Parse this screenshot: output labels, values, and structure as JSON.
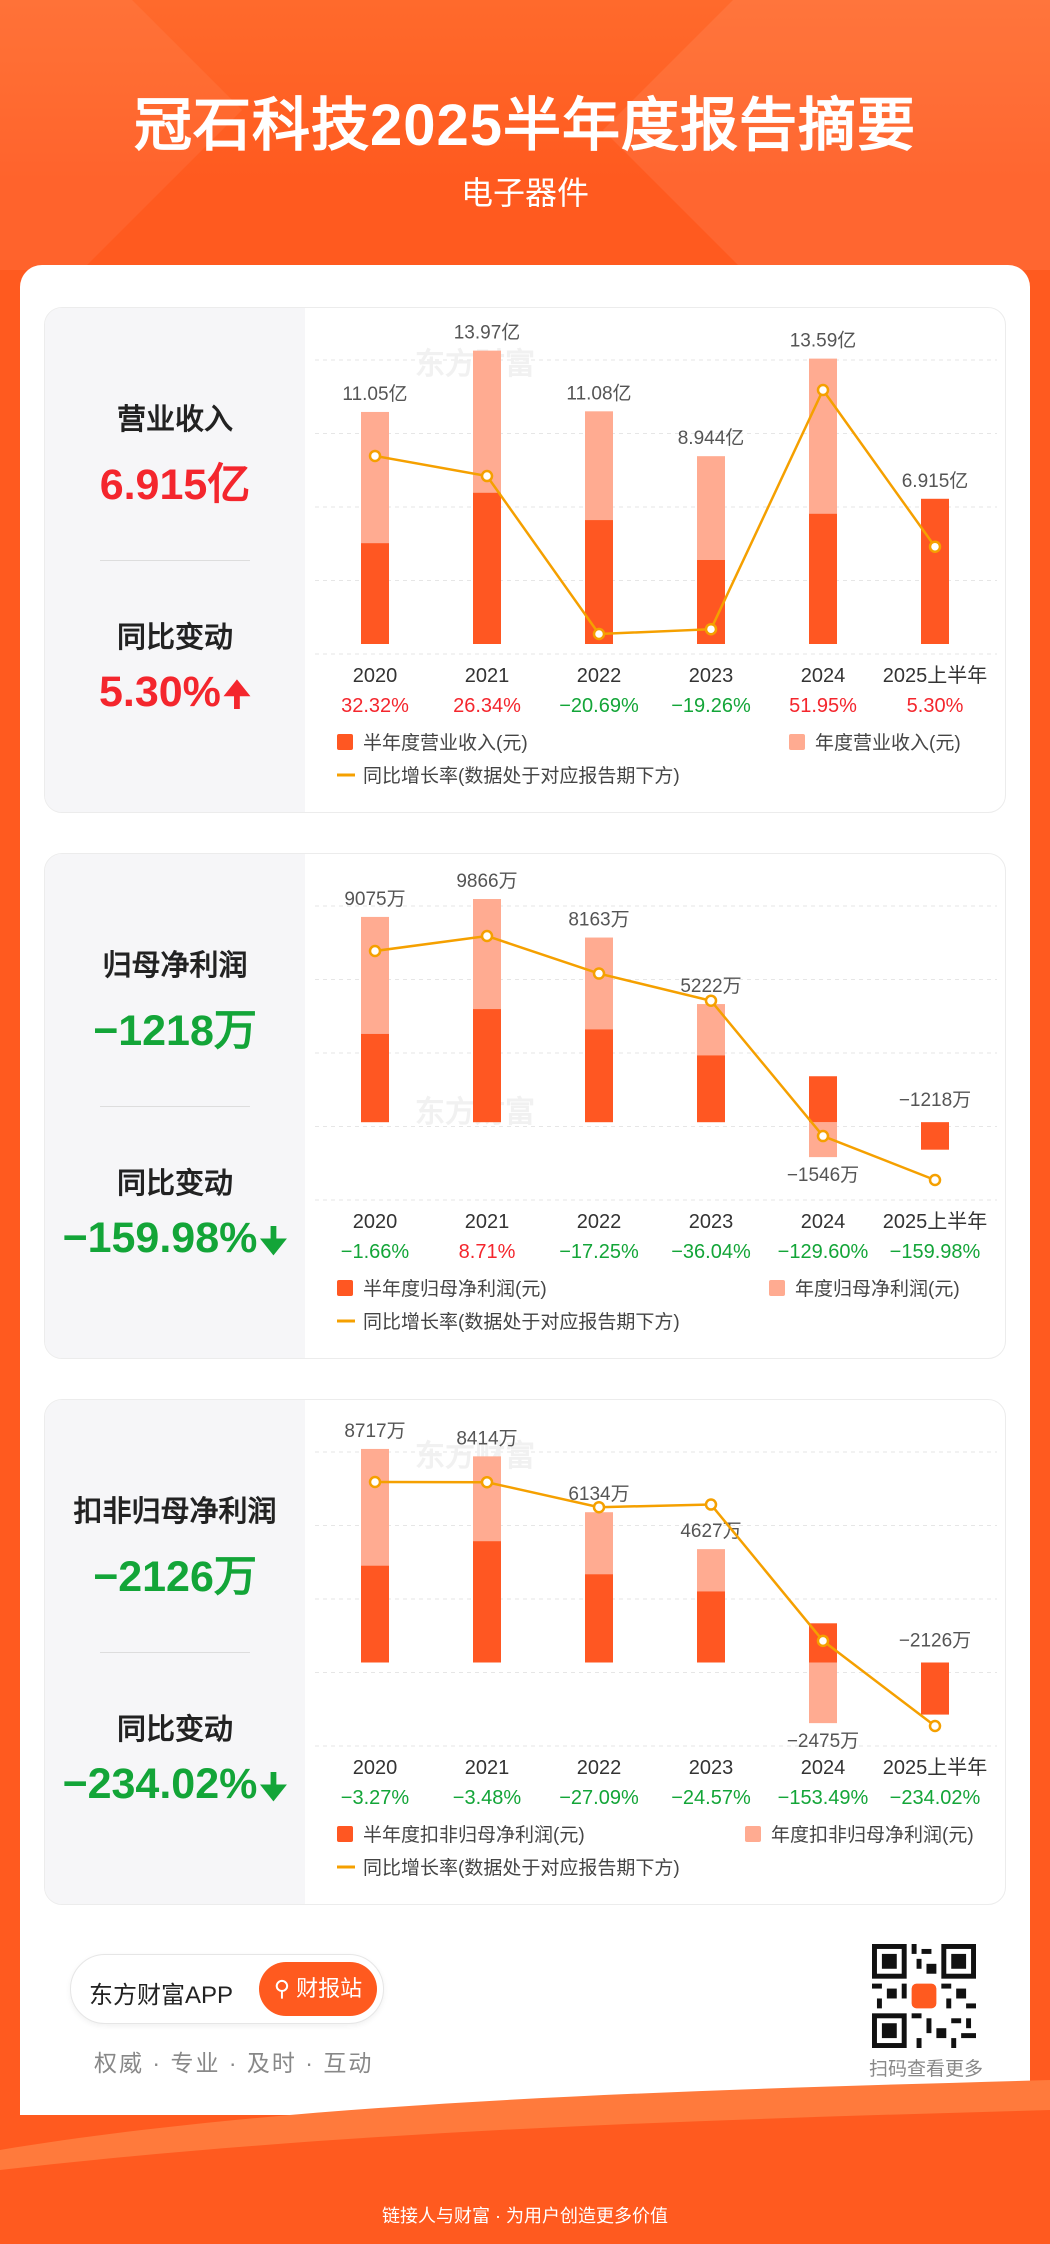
{
  "header": {
    "title": "冠石科技2025半年度报告摘要",
    "subtitle": "电子器件"
  },
  "colors": {
    "half_year": "#ff5722",
    "annual": "#ffab91",
    "growth_line": "#f5a000",
    "positive": "#f4262d",
    "negative": "#13a538"
  },
  "watermark": "东方财富",
  "categories": [
    "2020",
    "2021",
    "2022",
    "2023",
    "2024",
    "2025上半年"
  ],
  "sections": [
    {
      "metric_label": "营业收入",
      "metric_value": "6.915亿",
      "metric_sign": "positive",
      "change_label": "同比变动",
      "change_value": "5.30%",
      "change_arrow": "up",
      "legend": {
        "half": "半年度营业收入(元)",
        "annual": "年度营业收入(元)",
        "line": "同比增长率(数据处于对应报告期下方)"
      },
      "growth_labels": [
        "32.32%",
        "26.34%",
        "−20.69%",
        "−19.26%",
        "51.95%",
        "5.30%"
      ]
    },
    {
      "metric_label": "归母净利润",
      "metric_value": "−1218万",
      "metric_sign": "negative",
      "change_label": "同比变动",
      "change_value": "−159.98%",
      "change_arrow": "down",
      "legend": {
        "half": "半年度归母净利润(元)",
        "annual": "年度归母净利润(元)",
        "line": "同比增长率(数据处于对应报告期下方)"
      },
      "growth_labels": [
        "−1.66%",
        "8.71%",
        "−17.25%",
        "−36.04%",
        "−129.60%",
        "−159.98%"
      ]
    },
    {
      "metric_label": "扣非归母净利润",
      "metric_value": "−2126万",
      "metric_sign": "negative",
      "change_label": "同比变动",
      "change_value": "−234.02%",
      "change_arrow": "down",
      "legend": {
        "half": "半年度扣非归母净利润(元)",
        "annual": "年度扣非归母净利润(元)",
        "line": "同比增长率(数据处于对应报告期下方)"
      },
      "growth_labels": [
        "−3.27%",
        "−3.48%",
        "−27.09%",
        "−24.57%",
        "−153.49%",
        "−234.02%"
      ]
    }
  ],
  "chart_data": [
    {
      "type": "bar",
      "categories": [
        "2020",
        "2021",
        "2022",
        "2023",
        "2024",
        "2025上半年"
      ],
      "unit": "亿",
      "series": [
        {
          "name": "年度营业收入(元)",
          "values": [
            11.05,
            13.97,
            11.08,
            8.944,
            13.59,
            null
          ]
        },
        {
          "name": "半年度营业收入(元)",
          "values": [
            4.8,
            7.2,
            5.9,
            4.0,
            6.2,
            6.915
          ]
        }
      ],
      "value_labels": [
        "11.05亿",
        "13.97亿",
        "11.08亿",
        "8.944亿",
        "13.59亿",
        "6.915亿"
      ],
      "growth_rate": [
        32.32,
        26.34,
        -20.69,
        -19.26,
        51.95,
        5.3
      ],
      "growth_labels": [
        "32.32%",
        "26.34%",
        "−20.69%",
        "−19.26%",
        "51.95%",
        "5.30%"
      ],
      "ylim": [
        0,
        14
      ]
    },
    {
      "type": "bar",
      "categories": [
        "2020",
        "2021",
        "2022",
        "2023",
        "2024",
        "2025上半年"
      ],
      "unit": "万",
      "series": [
        {
          "name": "年度归母净利润(元)",
          "values": [
            9075,
            9866,
            8163,
            5222,
            -1546,
            null
          ]
        },
        {
          "name": "半年度归母净利润(元)",
          "values": [
            3900,
            5000,
            4100,
            2950,
            2030,
            -1218
          ]
        }
      ],
      "value_labels": [
        "9075万",
        "9866万",
        "8163万",
        "5222万",
        "−1546万",
        "−1218万"
      ],
      "growth_rate": [
        -1.66,
        8.71,
        -17.25,
        -36.04,
        -129.6,
        -159.98
      ],
      "growth_labels": [
        "−1.66%",
        "8.71%",
        "−17.25%",
        "−36.04%",
        "−129.60%",
        "−159.98%"
      ],
      "ylim": [
        -3000,
        10000
      ]
    },
    {
      "type": "bar",
      "categories": [
        "2020",
        "2021",
        "2022",
        "2023",
        "2024",
        "2025上半年"
      ],
      "unit": "万",
      "series": [
        {
          "name": "年度扣非归母净利润(元)",
          "values": [
            8717,
            8414,
            6134,
            4627,
            -2475,
            null
          ]
        },
        {
          "name": "半年度扣非归母净利润(元)",
          "values": [
            3950,
            4950,
            3600,
            2900,
            1600,
            -2126
          ]
        }
      ],
      "value_labels": [
        "8717万",
        "8414万",
        "6134万",
        "4627万",
        "−2475万",
        "−2126万"
      ],
      "growth_rate": [
        -3.27,
        -3.48,
        -27.09,
        -24.57,
        -153.49,
        -234.02
      ],
      "growth_labels": [
        "−3.27%",
        "−3.48%",
        "−27.09%",
        "−24.57%",
        "−153.49%",
        "−234.02%"
      ],
      "ylim": [
        -3000,
        9000
      ]
    }
  ],
  "footer": {
    "app_name": "东方财富APP",
    "button_label": "财报站",
    "slogan": "权威 · 专业 · 及时 · 互动",
    "qr_label": "扫码查看更多",
    "bottom_text": "链接人与财富 · 为用户创造更多价值"
  }
}
